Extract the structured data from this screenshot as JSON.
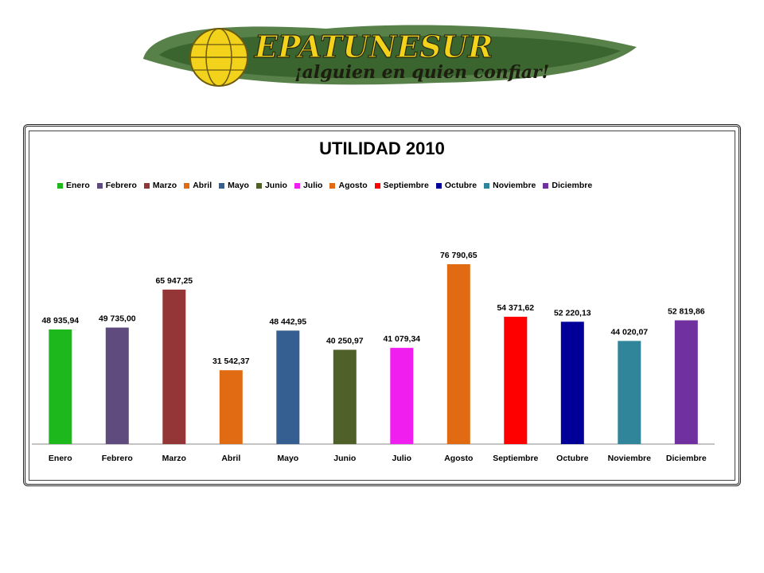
{
  "logo": {
    "brand": "EPATUNESUR",
    "slogan": "¡alguien en quien confiar!"
  },
  "colors": {
    "logo_green": "#3b6b2a",
    "logo_yellow": "#f2d21b",
    "frame": "#222222"
  },
  "chart_data": {
    "type": "bar",
    "title": "UTILIDAD 2010",
    "xlabel": "",
    "ylabel": "",
    "ylim": [
      0,
      90000
    ],
    "grid": false,
    "legend_position": "top",
    "categories": [
      "Enero",
      "Febrero",
      "Marzo",
      "Abril",
      "Mayo",
      "Junio",
      "Julio",
      "Agosto",
      "Septiembre",
      "Octubre",
      "Noviembre",
      "Diciembre"
    ],
    "values": [
      48935.94,
      49735.0,
      65947.25,
      31542.37,
      48442.95,
      40250.97,
      41079.34,
      76790.65,
      54371.62,
      52220.13,
      44020.07,
      52819.86
    ],
    "data_labels": [
      "48 935,94",
      "49 735,00",
      "65 947,25",
      "31 542,37",
      "48 442,95",
      "40 250,97",
      "41 079,34",
      "76 790,65",
      "54 371,62",
      "52 220,13",
      "44 020,07",
      "52 819,86"
    ],
    "colors": [
      "#1cb81c",
      "#5f4b7e",
      "#943637",
      "#e06b12",
      "#355f91",
      "#4f6128",
      "#f01ff0",
      "#e06b12",
      "#ff0000",
      "#000099",
      "#31859b",
      "#7030a0"
    ]
  }
}
